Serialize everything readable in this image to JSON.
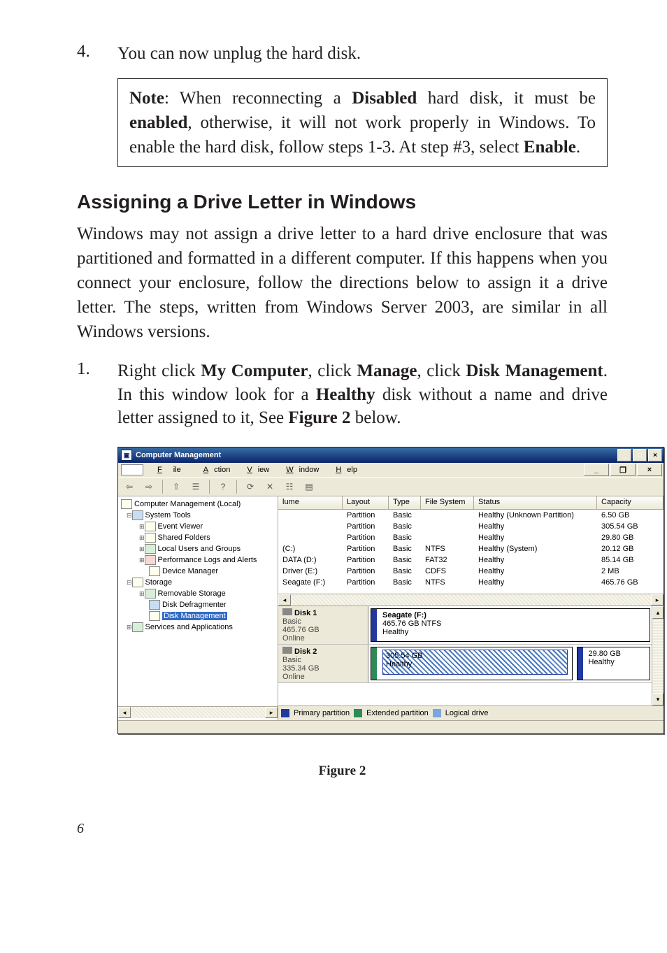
{
  "step4": {
    "num": "4.",
    "text_a": "You can now unplug the hard disk."
  },
  "note": {
    "label": "Note",
    "text_a": ": When reconnecting a ",
    "b1": "Disabled",
    "text_b": " hard disk, it must be ",
    "b2": "enabled",
    "text_c": ", otherwise, it will not work properly in Windows.  To enable the hard disk, follow steps 1-3.  At step #3, select ",
    "b3": "Enable",
    "text_d": "."
  },
  "section_title": "Assigning a  Drive Letter in Windows",
  "intro": "Windows may not assign a drive letter to a hard drive enclosure that was partitioned and formatted in a different computer.  If this happens when you connect your enclosure, follow the directions below to assign it a drive letter.  The steps, written from Windows Server 2003, are similar in all Windows versions.",
  "step1": {
    "num": "1.",
    "a": "Right click ",
    "b1": "My Computer",
    "b": ", click ",
    "b2": "Manage",
    "c": ", click ",
    "b3": "Disk Management",
    "d": ".  In this window look for a ",
    "b4": "Healthy",
    "e": " disk without a name and drive letter assigned to it, See ",
    "b5": "Figure 2",
    "f": " below."
  },
  "win": {
    "title": "Computer Management",
    "min": "_",
    "max": "□",
    "close": "×",
    "menu": {
      "file": "File",
      "action": "Action",
      "view": "View",
      "window": "Window",
      "help": "Help"
    },
    "toolbar": {
      "back": "⇦",
      "fwd": "⇨",
      "up": "⇧",
      "list": "☰",
      "help": "?",
      "refresh": "⟳",
      "delete": "✕",
      "prop": "☷",
      "x2": "▤"
    },
    "tree": {
      "root": "Computer Management (Local)",
      "n1": "System Tools",
      "n1a": "Event Viewer",
      "n1b": "Shared Folders",
      "n1c": "Local Users and Groups",
      "n1d": "Performance Logs and Alerts",
      "n1e": "Device Manager",
      "n2": "Storage",
      "n2a": "Removable Storage",
      "n2b": "Disk Defragmenter",
      "n2c": "Disk Management",
      "n3": "Services and Applications"
    },
    "cols": {
      "c1": "lume",
      "c2": "Layout",
      "c3": "Type",
      "c4": "File System",
      "c5": "Status",
      "c6": "Capacity"
    },
    "rows": [
      {
        "v": "",
        "l": "Partition",
        "t": "Basic",
        "fs": "",
        "s": "Healthy (Unknown Partition)",
        "c": "6.50 GB"
      },
      {
        "v": "",
        "l": "Partition",
        "t": "Basic",
        "fs": "",
        "s": "Healthy",
        "c": "305.54 GB"
      },
      {
        "v": "",
        "l": "Partition",
        "t": "Basic",
        "fs": "",
        "s": "Healthy",
        "c": "29.80 GB"
      },
      {
        "v": "(C:)",
        "l": "Partition",
        "t": "Basic",
        "fs": "NTFS",
        "s": "Healthy (System)",
        "c": "20.12 GB"
      },
      {
        "v": "DATA (D:)",
        "l": "Partition",
        "t": "Basic",
        "fs": "FAT32",
        "s": "Healthy",
        "c": "85.14 GB"
      },
      {
        "v": "Driver (E:)",
        "l": "Partition",
        "t": "Basic",
        "fs": "CDFS",
        "s": "Healthy",
        "c": "2 MB"
      },
      {
        "v": "Seagate (F:)",
        "l": "Partition",
        "t": "Basic",
        "fs": "NTFS",
        "s": "Healthy",
        "c": "465.76 GB"
      }
    ],
    "colw": {
      "c1": 92,
      "c2": 66,
      "c3": 46,
      "c4": 76,
      "c5": 176,
      "c6": 70
    },
    "disk1": {
      "label": "Disk 1",
      "type": "Basic",
      "size": "465.76 GB",
      "state": "Online",
      "part_name": "Seagate (F:)",
      "part_size": "465.76 GB NTFS",
      "part_state": "Healthy"
    },
    "disk2": {
      "label": "Disk 2",
      "type": "Basic",
      "size": "335.34 GB",
      "state": "Online",
      "p1_size": "305.54 GB",
      "p1_state": "Healthy",
      "p2_size": "29.80 GB",
      "p2_state": "Healthy"
    },
    "legend": {
      "l1": "Primary partition",
      "l2": "Extended partition",
      "l3": "Logical drive"
    },
    "colors": {
      "titlebar_top": "#3a6ea5",
      "titlebar_bot": "#0a246a",
      "primary": "#2038a0",
      "extended": "#2e8b57",
      "logical": "#7aa7e0",
      "face": "#ece9d8"
    }
  },
  "fig_caption": "Figure 2",
  "page_num": "6"
}
